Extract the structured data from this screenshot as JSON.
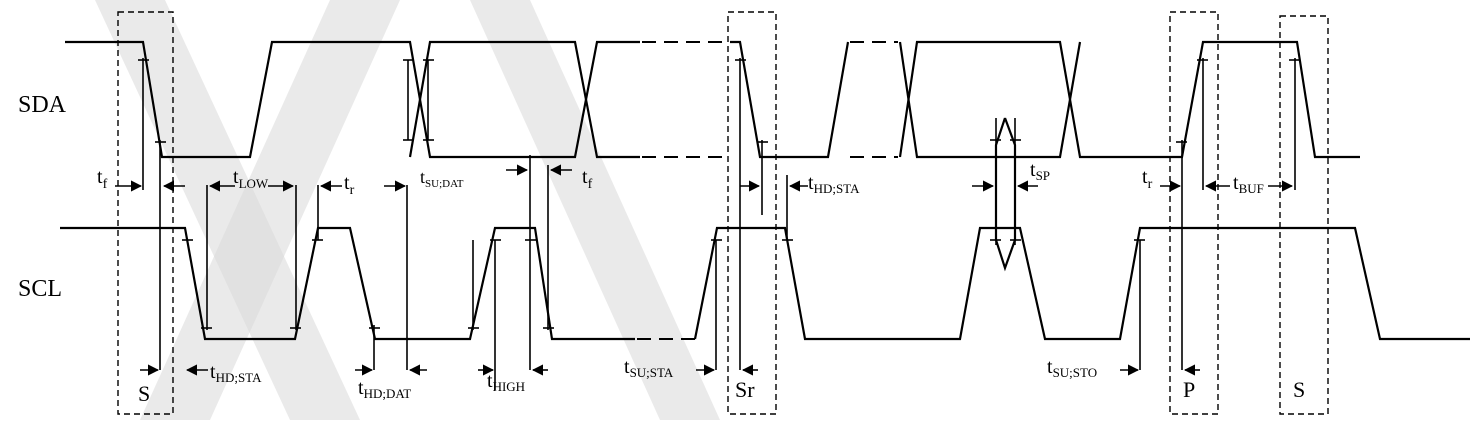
{
  "signals": {
    "sda": "SDA",
    "scl": "SCL"
  },
  "conditions": {
    "start": "S",
    "repeated_start": "Sr",
    "stop": "P",
    "start2": "S"
  },
  "timing": {
    "t_f_left": {
      "base": "t",
      "sub": "f"
    },
    "t_low": {
      "base": "t",
      "sub": "LOW"
    },
    "t_r_left": {
      "base": "t",
      "sub": "r"
    },
    "t_su_dat": {
      "base": "t",
      "sub": "SU;DAT"
    },
    "t_f_right": {
      "base": "t",
      "sub": "f"
    },
    "t_hd_sta_mid": {
      "base": "t",
      "sub": "HD;STA"
    },
    "t_sp": {
      "base": "t",
      "sub": "SP"
    },
    "t_r_right": {
      "base": "t",
      "sub": "r"
    },
    "t_buf": {
      "base": "t",
      "sub": "BUF"
    },
    "t_hd_sta_left": {
      "base": "t",
      "sub": "HD;STA"
    },
    "t_hd_dat": {
      "base": "t",
      "sub": "HD;DAT"
    },
    "t_high": {
      "base": "t",
      "sub": "HIGH"
    },
    "t_su_sta": {
      "base": "t",
      "sub": "SU;STA"
    },
    "t_su_sto": {
      "base": "t",
      "sub": "SU;STO"
    }
  }
}
